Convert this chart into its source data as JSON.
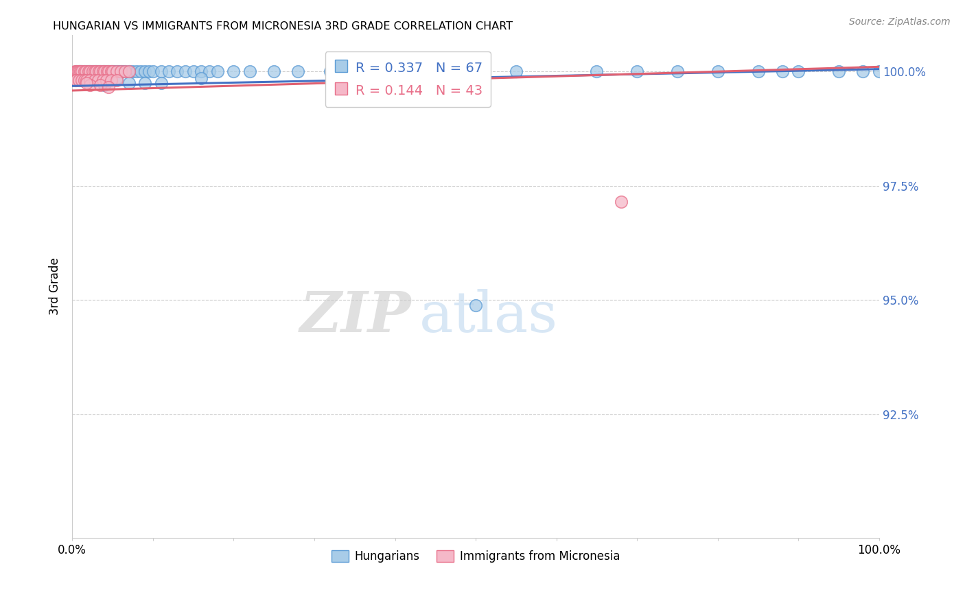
{
  "title": "HUNGARIAN VS IMMIGRANTS FROM MICRONESIA 3RD GRADE CORRELATION CHART",
  "source": "Source: ZipAtlas.com",
  "ylabel": "3rd Grade",
  "blue_color": "#a8cce8",
  "pink_color": "#f5b8c8",
  "blue_edge_color": "#5b9bd5",
  "pink_edge_color": "#e8708a",
  "blue_line_color": "#4472c4",
  "pink_line_color": "#e06070",
  "watermark_zip": "ZIP",
  "watermark_atlas": "atlas",
  "xmin": 0.0,
  "xmax": 1.0,
  "ymin": 0.898,
  "ymax": 1.008,
  "yticks": [
    0.925,
    0.95,
    0.975,
    1.0
  ],
  "ytick_labels": [
    "92.5%",
    "95.0%",
    "97.5%",
    "100.0%"
  ],
  "legend_blue_label": "R = 0.337   N = 67",
  "legend_pink_label": "R = 0.144   N = 43",
  "blue_scatter_x": [
    0.005,
    0.008,
    0.01,
    0.012,
    0.015,
    0.018,
    0.02,
    0.022,
    0.025,
    0.028,
    0.03,
    0.032,
    0.035,
    0.038,
    0.04,
    0.042,
    0.045,
    0.048,
    0.05,
    0.052,
    0.055,
    0.058,
    0.06,
    0.063,
    0.065,
    0.07,
    0.075,
    0.08,
    0.085,
    0.09,
    0.095,
    0.1,
    0.11,
    0.12,
    0.13,
    0.14,
    0.15,
    0.16,
    0.17,
    0.18,
    0.2,
    0.22,
    0.25,
    0.28,
    0.32,
    0.35,
    0.4,
    0.45,
    0.5,
    0.55,
    0.65,
    0.7,
    0.75,
    0.8,
    0.85,
    0.88,
    0.9,
    0.95,
    0.98,
    1.0,
    0.04,
    0.055,
    0.07,
    0.09,
    0.11,
    0.16,
    0.5
  ],
  "blue_scatter_y": [
    1.0,
    1.0,
    1.0,
    1.0,
    1.0,
    1.0,
    1.0,
    1.0,
    1.0,
    1.0,
    1.0,
    1.0,
    1.0,
    1.0,
    1.0,
    1.0,
    1.0,
    1.0,
    1.0,
    1.0,
    1.0,
    1.0,
    1.0,
    1.0,
    1.0,
    1.0,
    1.0,
    1.0,
    1.0,
    1.0,
    1.0,
    1.0,
    1.0,
    1.0,
    1.0,
    1.0,
    1.0,
    1.0,
    1.0,
    1.0,
    1.0,
    1.0,
    1.0,
    1.0,
    1.0,
    1.0,
    1.0,
    1.0,
    1.0,
    1.0,
    1.0,
    1.0,
    1.0,
    1.0,
    1.0,
    1.0,
    1.0,
    1.0,
    1.0,
    1.0,
    0.997,
    0.9985,
    0.9975,
    0.9975,
    0.9975,
    0.9985,
    0.9488
  ],
  "pink_scatter_x": [
    0.003,
    0.005,
    0.007,
    0.008,
    0.01,
    0.012,
    0.015,
    0.017,
    0.02,
    0.022,
    0.025,
    0.028,
    0.03,
    0.033,
    0.035,
    0.038,
    0.04,
    0.043,
    0.045,
    0.048,
    0.05,
    0.055,
    0.06,
    0.065,
    0.07,
    0.003,
    0.005,
    0.008,
    0.012,
    0.015,
    0.018,
    0.022,
    0.028,
    0.032,
    0.038,
    0.042,
    0.048,
    0.055,
    0.022,
    0.035,
    0.018,
    0.045,
    0.68
  ],
  "pink_scatter_y": [
    1.0,
    1.0,
    1.0,
    1.0,
    1.0,
    1.0,
    1.0,
    1.0,
    1.0,
    1.0,
    1.0,
    1.0,
    1.0,
    1.0,
    1.0,
    1.0,
    1.0,
    1.0,
    1.0,
    1.0,
    1.0,
    1.0,
    1.0,
    1.0,
    1.0,
    0.998,
    0.998,
    0.998,
    0.998,
    0.998,
    0.998,
    0.998,
    0.998,
    0.998,
    0.998,
    0.998,
    0.998,
    0.998,
    0.997,
    0.997,
    0.9975,
    0.9965,
    0.9715
  ],
  "blue_trend": [
    0.0,
    1.0,
    0.9968,
    1.0005
  ],
  "pink_trend": [
    0.0,
    1.0,
    0.9958,
    1.001
  ]
}
